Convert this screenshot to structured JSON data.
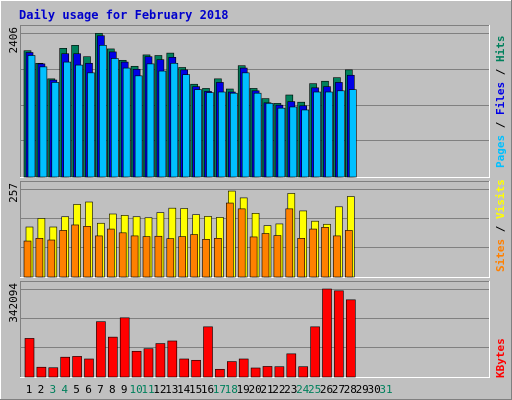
{
  "title": "Daily usage for February 2018",
  "colors": {
    "background": "#c0c0c0",
    "title": "#0000cc",
    "hits": "#00805c",
    "files": "#0000e6",
    "pages": "#00c0ff",
    "visits": "#ffff00",
    "sites": "#ff8000",
    "kbytes": "#ff0000",
    "day_normal": "#000000",
    "day_weekend": "#00805c"
  },
  "chart_data": [
    {
      "type": "bar",
      "title": "Daily usage for February 2018",
      "ylabel_top": "2406",
      "legend": [
        "Pages",
        "Files",
        "Hits"
      ],
      "ymax": 2406,
      "categories": [
        "1",
        "2",
        "3",
        "4",
        "5",
        "6",
        "7",
        "8",
        "9",
        "10",
        "11",
        "12",
        "13",
        "14",
        "15",
        "16",
        "17",
        "18",
        "19",
        "20",
        "21",
        "22",
        "23",
        "24",
        "25",
        "26",
        "27",
        "28",
        "29",
        "30",
        "31"
      ],
      "weekend_days": [
        "3",
        "4",
        "10",
        "11",
        "17",
        "18",
        "24",
        "25",
        "31"
      ],
      "series": [
        {
          "name": "Hits",
          "values": [
            2110,
            1900,
            1640,
            2150,
            2200,
            2010,
            2400,
            2140,
            1950,
            1850,
            2040,
            2030,
            2070,
            1830,
            1550,
            1480,
            1640,
            1470,
            1860,
            1480,
            1310,
            1230,
            1370,
            1250,
            1560,
            1600,
            1660,
            1790,
            0,
            0,
            0
          ]
        },
        {
          "name": "Files",
          "values": [
            2080,
            1890,
            1620,
            2060,
            2060,
            1900,
            2360,
            2090,
            1920,
            1800,
            2010,
            1960,
            2000,
            1790,
            1510,
            1430,
            1580,
            1420,
            1820,
            1440,
            1240,
            1200,
            1260,
            1190,
            1490,
            1510,
            1580,
            1700,
            0,
            0,
            0
          ]
        },
        {
          "name": "Pages",
          "values": [
            2030,
            1840,
            1580,
            1920,
            1870,
            1740,
            2200,
            1980,
            1820,
            1690,
            1890,
            1770,
            1900,
            1710,
            1460,
            1410,
            1420,
            1400,
            1740,
            1400,
            1230,
            1150,
            1170,
            1120,
            1420,
            1420,
            1440,
            1460,
            0,
            0,
            0
          ]
        }
      ]
    },
    {
      "type": "bar",
      "ylabel_top": "257",
      "legend": [
        "Sites",
        "Visits"
      ],
      "ymax": 257,
      "series": [
        {
          "name": "Visits",
          "values": [
            146,
            171,
            146,
            176,
            212,
            219,
            157,
            184,
            180,
            176,
            173,
            188,
            201,
            200,
            182,
            177,
            174,
            251,
            231,
            186,
            150,
            155,
            244,
            193,
            163,
            154,
            205,
            235,
            0,
            0,
            0
          ]
        },
        {
          "name": "Sites",
          "values": [
            105,
            113,
            108,
            136,
            152,
            148,
            120,
            140,
            129,
            120,
            118,
            119,
            112,
            118,
            124,
            110,
            113,
            216,
            199,
            117,
            127,
            121,
            199,
            113,
            140,
            145,
            120,
            136,
            0,
            0,
            0
          ]
        }
      ]
    },
    {
      "type": "bar",
      "ylabel_top": "342094",
      "legend": [
        "KBytes"
      ],
      "ymax": 342094,
      "series": [
        {
          "name": "KBytes",
          "values": [
            150000,
            38000,
            36000,
            77000,
            80000,
            70000,
            215000,
            155000,
            230000,
            100000,
            110000,
            130000,
            140000,
            70000,
            65000,
            195000,
            30000,
            60000,
            70000,
            35000,
            41000,
            40000,
            90000,
            40000,
            195000,
            342000,
            335000,
            300000,
            0,
            0,
            0
          ]
        }
      ]
    }
  ]
}
